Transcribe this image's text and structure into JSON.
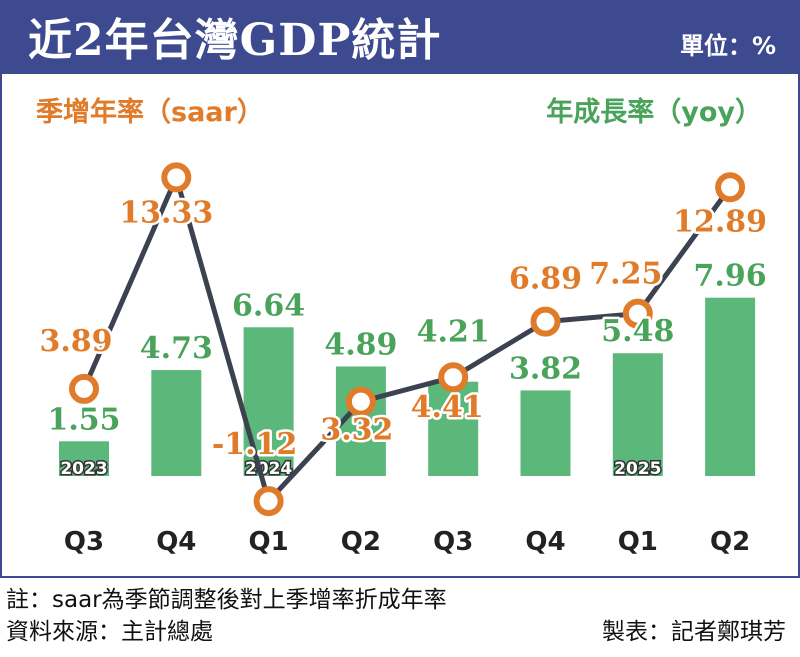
{
  "header": {
    "title": "近2年台灣GDP統計",
    "unit": "單位：%"
  },
  "colors": {
    "header_bg": "#3d4a8f",
    "saar": "#e07b2a",
    "yoy_bar": "#5cb87a",
    "line": "#3c4250"
  },
  "chart_data": {
    "type": "bar+line",
    "categories": [
      "Q3",
      "Q4",
      "Q1",
      "Q2",
      "Q3",
      "Q4",
      "Q1",
      "Q2"
    ],
    "year_markers": [
      {
        "index": 0,
        "label": "2023"
      },
      {
        "index": 2,
        "label": "2024"
      },
      {
        "index": 6,
        "label": "2025"
      }
    ],
    "series": [
      {
        "name": "年成長率（yoy）",
        "type": "bar",
        "values": [
          1.55,
          4.73,
          6.64,
          4.89,
          4.21,
          3.82,
          5.48,
          7.96
        ]
      },
      {
        "name": "季增年率（saar）",
        "type": "line",
        "values": [
          3.89,
          13.33,
          -1.12,
          3.32,
          4.41,
          6.89,
          7.25,
          12.89
        ]
      }
    ],
    "labels_saar": [
      "3.89",
      "13.33",
      "-1.12",
      "3.32",
      "4.41",
      "6.89",
      "7.25",
      "12.89"
    ],
    "labels_yoy": [
      "1.55",
      "4.73",
      "6.64",
      "4.89",
      "4.21",
      "3.82",
      "5.48",
      "7.96"
    ],
    "ylim": [
      -3,
      15
    ],
    "grid": false,
    "legend": [
      "top-left",
      "top-right"
    ]
  },
  "footer": {
    "note": "註：saar為季節調整後對上季增率折成年率",
    "source": "資料來源：主計總處",
    "credit": "製表：記者鄭琪芳"
  }
}
